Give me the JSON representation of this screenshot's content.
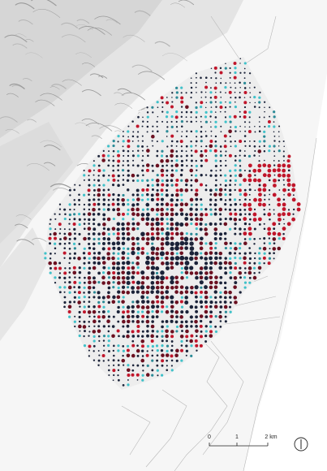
{
  "scale": {
    "labels": [
      "0",
      "1",
      "2 km"
    ]
  },
  "north_arrow": {
    "icon": "north-arrow-icon"
  },
  "colors": {
    "terrain": "#d8d8d8",
    "terrain_dark": "#9a9a9a",
    "city_light": "#efefef",
    "dot_dark": "#1a2238",
    "dot_red": "#c0152a",
    "dot_darkred": "#6b1020",
    "dot_cyan": "#3fc1c9",
    "dot_teal": "#2a8a96"
  }
}
